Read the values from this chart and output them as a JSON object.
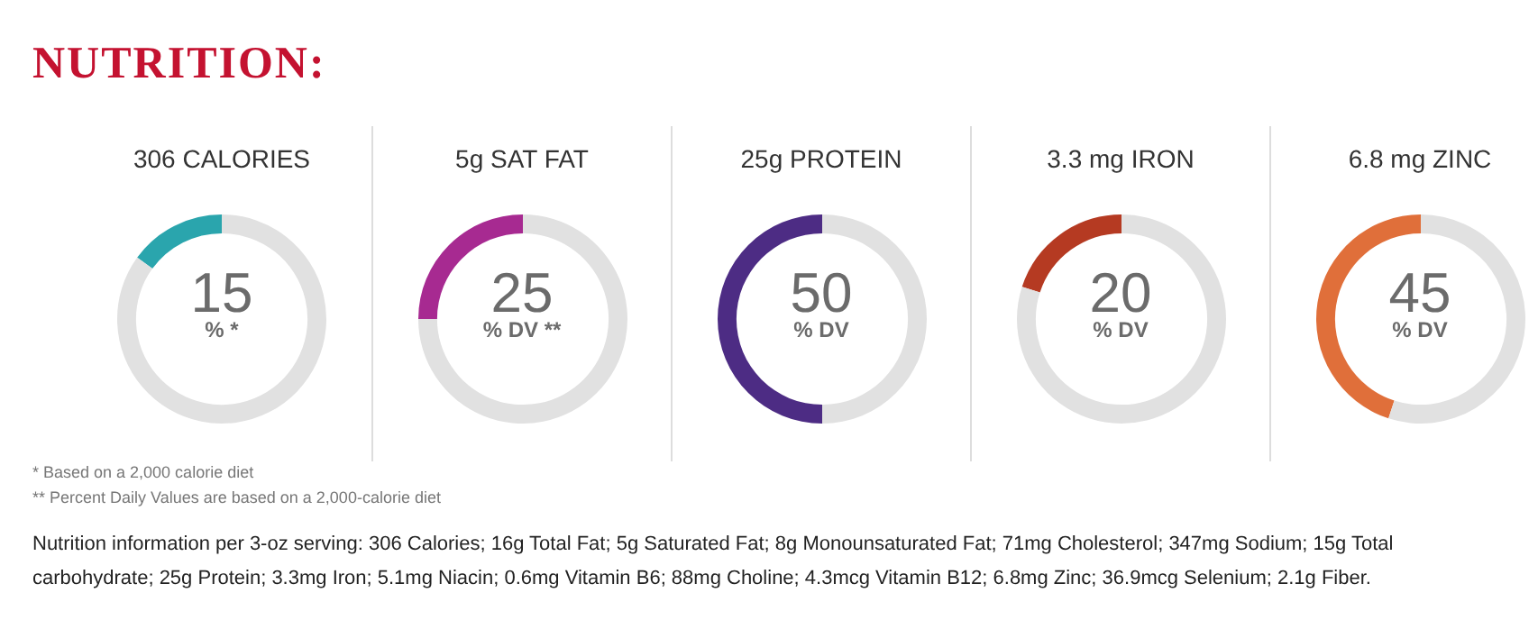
{
  "chart_data": [
    {
      "type": "other",
      "title": "NUTRITION:"
    },
    {
      "type": "donut",
      "title": "306 CALORIES",
      "categories": [
        null,
        null
      ],
      "values": [
        15,
        85
      ],
      "colors": [
        "#2aa5ad",
        "#e1e1e1"
      ],
      "value_labels": [
        "15",
        null
      ],
      "annotations": [
        "% *"
      ]
    },
    {
      "type": "donut",
      "title": "5g SAT FAT",
      "categories": [
        null,
        null
      ],
      "values": [
        25,
        75
      ],
      "colors": [
        "#a72a91",
        "#e1e1e1"
      ],
      "value_labels": [
        "25",
        null
      ],
      "annotations": [
        "% DV **"
      ]
    },
    {
      "type": "donut",
      "title": "25g PROTEIN",
      "categories": [
        null,
        null
      ],
      "values": [
        50,
        50
      ],
      "colors": [
        "#4d2c84",
        "#e1e1e1"
      ],
      "value_labels": [
        "50",
        null
      ],
      "annotations": [
        "% DV"
      ]
    },
    {
      "type": "donut",
      "title": "3.3 mg IRON",
      "categories": [
        null,
        null
      ],
      "values": [
        20,
        80
      ],
      "colors": [
        "#b53a22",
        "#e1e1e1"
      ],
      "value_labels": [
        "20",
        null
      ],
      "annotations": [
        "% DV"
      ]
    },
    {
      "type": "donut",
      "title": "6.8 mg ZINC",
      "categories": [
        null,
        null
      ],
      "values": [
        45,
        55
      ],
      "colors": [
        "#e06f3a",
        "#e1e1e1"
      ],
      "value_labels": [
        "45",
        null
      ],
      "annotations": [
        "% DV"
      ]
    },
    {
      "type": "other",
      "annotations": [
        "* Based on a 2,000 calorie diet",
        "** Percent Daily Values are based on a 2,000-calorie diet",
        "Nutrition information per 3-oz serving: 306 Calories; 16g Total Fat; 5g Saturated Fat; 8g Monounsaturated Fat; 71mg Cholesterol; 347mg Sodium; 15g Total carbohydrate; 25g Protein; 3.3mg Iron; 5.1mg Niacin; 0.6mg Vitamin B6; 88mg Choline; 4.3mcg Vitamin B12; 6.8mg Zinc; 36.9mcg Selenium; 2.1g Fiber."
      ]
    }
  ]
}
